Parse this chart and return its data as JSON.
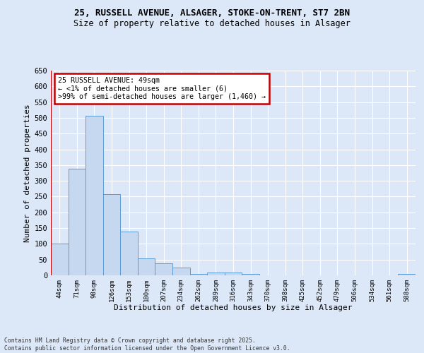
{
  "title1": "25, RUSSELL AVENUE, ALSAGER, STOKE-ON-TRENT, ST7 2BN",
  "title2": "Size of property relative to detached houses in Alsager",
  "xlabel": "Distribution of detached houses by size in Alsager",
  "ylabel": "Number of detached properties",
  "categories": [
    "44sqm",
    "71sqm",
    "98sqm",
    "126sqm",
    "153sqm",
    "180sqm",
    "207sqm",
    "234sqm",
    "262sqm",
    "289sqm",
    "316sqm",
    "343sqm",
    "370sqm",
    "398sqm",
    "425sqm",
    "452sqm",
    "479sqm",
    "506sqm",
    "534sqm",
    "561sqm",
    "588sqm"
  ],
  "values": [
    100,
    338,
    507,
    257,
    140,
    53,
    38,
    24,
    5,
    10,
    9,
    5,
    0,
    0,
    0,
    0,
    0,
    0,
    0,
    0,
    5
  ],
  "bar_color": "#c5d8f0",
  "bar_edge_color": "#5b9bd5",
  "highlight_color": "#c00000",
  "annotation_text": "25 RUSSELL AVENUE: 49sqm\n← <1% of detached houses are smaller (6)\n>99% of semi-detached houses are larger (1,460) →",
  "annotation_box_color": "#ffffff",
  "annotation_box_edge": "#c00000",
  "background_color": "#dce8f8",
  "grid_color": "#ffffff",
  "ylim": [
    0,
    650
  ],
  "yticks": [
    0,
    50,
    100,
    150,
    200,
    250,
    300,
    350,
    400,
    450,
    500,
    550,
    600,
    650
  ],
  "footer1": "Contains HM Land Registry data © Crown copyright and database right 2025.",
  "footer2": "Contains public sector information licensed under the Open Government Licence v3.0."
}
